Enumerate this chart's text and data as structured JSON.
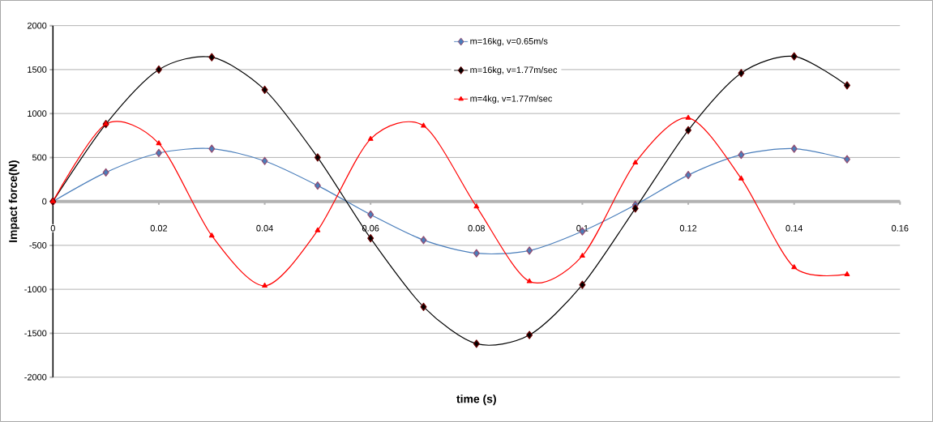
{
  "chart_data": {
    "type": "line",
    "xlabel": "time (s)",
    "ylabel": "Impact force(N)",
    "x": [
      0,
      0.01,
      0.02,
      0.03,
      0.04,
      0.05,
      0.06,
      0.07,
      0.08,
      0.09,
      0.1,
      0.11,
      0.12,
      0.13,
      0.14,
      0.15
    ],
    "xlim": [
      0,
      0.16
    ],
    "xticks": [
      0,
      0.02,
      0.04,
      0.06,
      0.08,
      0.1,
      0.12,
      0.14,
      0.16
    ],
    "ylim": [
      -2000,
      2000
    ],
    "yticks": [
      -2000,
      -1500,
      -1000,
      -500,
      0,
      500,
      1000,
      1500,
      2000
    ],
    "grid": "y",
    "legend": "top right",
    "line_style": "solid",
    "series": [
      {
        "name": "m=16kg, v=0.65m/s",
        "color": "#4a7ebb",
        "marker": "diamond",
        "values": [
          0,
          330,
          550,
          600,
          460,
          180,
          -150,
          -440,
          -590,
          -560,
          -340,
          -40,
          300,
          530,
          600,
          480
        ]
      },
      {
        "name": "m=16kg, v=1.77m/sec",
        "color": "#000000",
        "marker": "diamond",
        "values": [
          0,
          880,
          1500,
          1640,
          1270,
          500,
          -420,
          -1200,
          -1620,
          -1520,
          -950,
          -80,
          810,
          1460,
          1650,
          1320
        ]
      },
      {
        "name": "m=4kg, v=1.77m/sec",
        "color": "#ff0000",
        "marker": "triangle",
        "values": [
          0,
          880,
          660,
          -390,
          -960,
          -330,
          710,
          860,
          -60,
          -910,
          -620,
          440,
          950,
          260,
          -750,
          -830
        ]
      }
    ]
  }
}
